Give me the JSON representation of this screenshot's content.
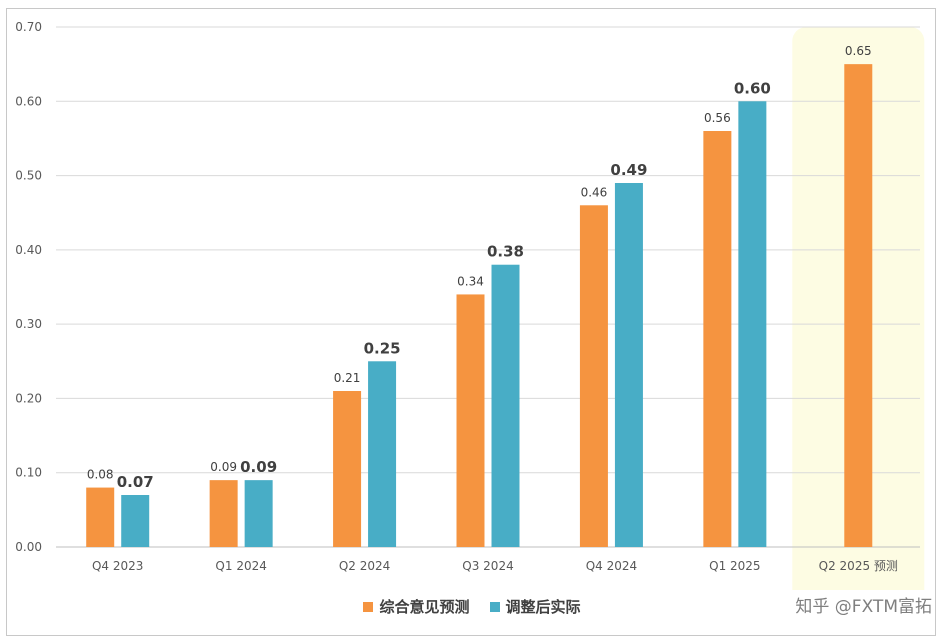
{
  "chart_data": {
    "type": "bar",
    "categories": [
      "Q4 2023",
      "Q1 2024",
      "Q2 2024",
      "Q3 2024",
      "Q4 2024",
      "Q1 2025",
      "Q2 2025 预测"
    ],
    "series": [
      {
        "name": "综合意见预测",
        "values": [
          0.08,
          0.09,
          0.21,
          0.34,
          0.46,
          0.56,
          0.65
        ],
        "labels": [
          "0.08",
          "0.09",
          "0.21",
          "0.34",
          "0.46",
          "0.56",
          "0.65"
        ],
        "color": "#F59440"
      },
      {
        "name": "调整后实际",
        "values": [
          0.07,
          0.09,
          0.25,
          0.38,
          0.49,
          0.6,
          null
        ],
        "labels": [
          "0.07",
          "0.09",
          "0.25",
          "0.38",
          "0.49",
          "0.60",
          null
        ],
        "color": "#48ADC6"
      }
    ],
    "y_ticks": [
      "0.00",
      "0.10",
      "0.20",
      "0.30",
      "0.40",
      "0.50",
      "0.60",
      "0.70"
    ],
    "ylim": [
      0,
      0.7
    ],
    "grid": true,
    "legend_position": "bottom",
    "highlight": {
      "category": "Q2 2025 预测",
      "color": "#FDFCE3"
    }
  },
  "watermark": "知乎 @FXTM富拓"
}
